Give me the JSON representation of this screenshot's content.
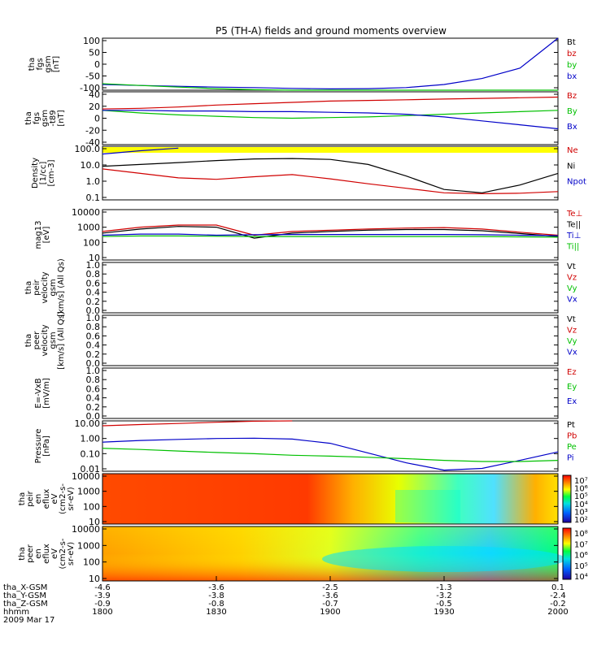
{
  "title": "P5 (TH-A) fields and ground moments overview",
  "colors": {
    "black": "#000000",
    "red": "#d00000",
    "green": "#00c000",
    "blue": "#0000c8",
    "yellow": "#ffff00"
  },
  "panels": [
    {
      "id": "fgs-gsm",
      "ylabel": [
        "tha",
        "fgs",
        "gsm",
        "[nT]"
      ],
      "yticks": [
        "100",
        "50",
        "0",
        "-50",
        "-100"
      ],
      "ylim": [
        -100,
        100
      ],
      "legend": [
        {
          "text": "Bt",
          "color": "black"
        },
        {
          "text": "bz",
          "color": "red"
        },
        {
          "text": "by",
          "color": "green"
        },
        {
          "text": "bx",
          "color": "blue"
        }
      ]
    },
    {
      "id": "fgs-dsl",
      "ylabel": [
        "tha",
        "fgs",
        "gsm",
        "-t89",
        "[nT]"
      ],
      "yticks": [
        "40",
        "20",
        "0",
        "-20",
        "-40"
      ],
      "ylim": [
        -40,
        40
      ],
      "legend": [
        {
          "text": "Bz",
          "color": "red"
        },
        {
          "text": "By",
          "color": "green"
        },
        {
          "text": "Bx",
          "color": "blue"
        }
      ]
    },
    {
      "id": "density",
      "ylabel": [
        "Density",
        "[1/cc]",
        "[cm-3]"
      ],
      "yticks": [
        "100.0",
        "10.0",
        "1.0",
        "0.1"
      ],
      "ylim": [
        0.05,
        200
      ],
      "log": true,
      "legend": [
        {
          "text": "Ne",
          "color": "red"
        },
        {
          "text": "Ni",
          "color": "black"
        },
        {
          "text": "Npot",
          "color": "blue"
        }
      ]
    },
    {
      "id": "temperature",
      "ylabel": [
        "mag13",
        "[eV]"
      ],
      "yticks": [
        "10000",
        "1000",
        "100",
        "10"
      ],
      "ylim": [
        10,
        10000
      ],
      "log": true,
      "legend": [
        {
          "text": "Te⊥",
          "color": "red"
        },
        {
          "text": "Te||",
          "color": "black"
        },
        {
          "text": "Ti⊥",
          "color": "blue"
        },
        {
          "text": "Ti||",
          "color": "green"
        }
      ]
    },
    {
      "id": "peir-velocity",
      "ylabel": [
        "tha",
        "peir",
        "velocity",
        "gsm",
        "[km/s] (All Qs)"
      ],
      "yticks": [
        "1.0",
        "0.8",
        "0.6",
        "0.4",
        "0.2",
        "0.0"
      ],
      "ylim": [
        0,
        1
      ],
      "legend": [
        {
          "text": "Vt",
          "color": "black"
        },
        {
          "text": "Vz",
          "color": "red"
        },
        {
          "text": "Vy",
          "color": "green"
        },
        {
          "text": "Vx",
          "color": "blue"
        }
      ]
    },
    {
      "id": "peer-velocity",
      "ylabel": [
        "tha",
        "peer",
        "velocity",
        "gsm",
        "[km/s] (All Qs)"
      ],
      "yticks": [
        "1.0",
        "0.8",
        "0.6",
        "0.4",
        "0.2",
        "0.0"
      ],
      "ylim": [
        0,
        1
      ],
      "legend": [
        {
          "text": "Vt",
          "color": "black"
        },
        {
          "text": "Vz",
          "color": "red"
        },
        {
          "text": "Vy",
          "color": "green"
        },
        {
          "text": "Vx",
          "color": "blue"
        }
      ]
    },
    {
      "id": "efield",
      "ylabel": [
        "E=-VxB",
        "[mV/m]"
      ],
      "yticks": [
        "1.0",
        "0.8",
        "0.6",
        "0.4",
        "0.2",
        "0.0"
      ],
      "ylim": [
        0,
        1
      ],
      "legend": [
        {
          "text": "Ez",
          "color": "red"
        },
        {
          "text": "Ey",
          "color": "green"
        },
        {
          "text": "Ex",
          "color": "blue"
        }
      ]
    },
    {
      "id": "pressure",
      "ylabel": [
        "Pressure",
        "[nPa]"
      ],
      "yticks": [
        "10.00",
        "1.00",
        "0.10",
        "0.01"
      ],
      "ylim": [
        0.005,
        20
      ],
      "log": true,
      "legend": [
        {
          "text": "Pt",
          "color": "black"
        },
        {
          "text": "Pb",
          "color": "red"
        },
        {
          "text": "Pe",
          "color": "green"
        },
        {
          "text": "Pi",
          "color": "blue"
        }
      ]
    },
    {
      "id": "peir-spectrogram",
      "ylabel": [
        "tha",
        "peir",
        "en",
        "eflux",
        "eV",
        "(cm2-s-",
        "sr-eV)"
      ],
      "yticks": [
        "10000",
        "1000",
        "100",
        "10"
      ],
      "colorbar": [
        "10⁷",
        "10⁶",
        "10⁵",
        "10⁴",
        "10³",
        "10²"
      ]
    },
    {
      "id": "peer-spectrogram",
      "ylabel": [
        "tha",
        "peer",
        "en",
        "eflux",
        "eV",
        "(cm2-s-",
        "sr-eV)"
      ],
      "yticks": [
        "10000",
        "1000",
        "100",
        "10"
      ],
      "colorbar": [
        "10⁸",
        "10⁷",
        "10⁶",
        "10⁵",
        "10⁴"
      ]
    }
  ],
  "xaxis": {
    "rows": [
      {
        "label": "tha_X-GSM",
        "values": [
          "-4.6",
          "-3.6",
          "-2.5",
          "-1.3",
          "0.1"
        ]
      },
      {
        "label": "tha_Y-GSM",
        "values": [
          "-3.9",
          "-3.8",
          "-3.6",
          "-3.2",
          "-2.4"
        ]
      },
      {
        "label": "tha_Z-GSM",
        "values": [
          "-0.9",
          "-0.8",
          "-0.7",
          "-0.5",
          "-0.2"
        ]
      },
      {
        "label": "hhmm",
        "values": [
          "1800",
          "1830",
          "1900",
          "1930",
          "2000"
        ]
      }
    ],
    "date": "2009 Mar 17"
  },
  "chart_data": [
    {
      "type": "line",
      "panel": "fgs-gsm",
      "x_hhmm": [
        1800,
        1810,
        1820,
        1830,
        1840,
        1850,
        1900,
        1910,
        1920,
        1930,
        1940,
        1950,
        2000
      ],
      "ylim": [
        -100,
        100
      ],
      "series": [
        {
          "name": "bx",
          "color": "#0000c8",
          "values": [
            -78,
            -82,
            -85,
            -88,
            -90,
            -93,
            -95,
            -94,
            -90,
            -78,
            -55,
            -15,
            100
          ]
        },
        {
          "name": "by",
          "color": "#00c000",
          "values": [
            -75,
            -82,
            -88,
            -94,
            -98,
            -100,
            -100,
            -100,
            -100,
            -100,
            -100,
            -100,
            -100
          ]
        }
      ]
    },
    {
      "type": "line",
      "panel": "fgs-dsl",
      "x_hhmm": [
        1800,
        1810,
        1820,
        1830,
        1840,
        1850,
        1900,
        1910,
        1920,
        1930,
        1940,
        1950,
        2000
      ],
      "ylim": [
        -40,
        40
      ],
      "series": [
        {
          "name": "Bz",
          "color": "#d00000",
          "values": [
            14,
            15,
            17,
            20,
            22,
            24,
            26,
            27,
            28,
            29,
            30,
            31,
            32
          ]
        },
        {
          "name": "By",
          "color": "#00c000",
          "values": [
            12,
            8,
            5,
            3,
            1,
            0,
            1,
            2,
            4,
            6,
            8,
            10,
            12
          ]
        },
        {
          "name": "Bx",
          "color": "#0000c8",
          "values": [
            12,
            12,
            11,
            11,
            10,
            10,
            9,
            8,
            6,
            2,
            -4,
            -10,
            -16
          ]
        }
      ]
    },
    {
      "type": "line",
      "panel": "density",
      "x_hhmm": [
        1800,
        1810,
        1820,
        1830,
        1840,
        1850,
        1900,
        1910,
        1920,
        1930,
        1940,
        1950,
        2000
      ],
      "ylim": [
        0.05,
        200
      ],
      "log": true,
      "series": [
        {
          "name": "Ne",
          "color": "#d00000",
          "values": [
            6,
            3,
            1.5,
            1.2,
            1.8,
            2.5,
            1.3,
            0.6,
            0.3,
            0.15,
            0.13,
            0.14,
            0.18
          ]
        },
        {
          "name": "Ni",
          "color": "#000000",
          "values": [
            9,
            12,
            16,
            22,
            28,
            30,
            26,
            12,
            2,
            0.25,
            0.15,
            0.5,
            3
          ]
        },
        {
          "name": "Npot",
          "color": "#0000c8",
          "values": [
            60,
            100,
            150,
            null,
            null,
            null,
            null,
            null,
            null,
            null,
            null,
            null,
            null
          ]
        }
      ]
    },
    {
      "type": "line",
      "panel": "temperature",
      "x_hhmm": [
        1800,
        1810,
        1820,
        1830,
        1840,
        1850,
        1900,
        1910,
        1920,
        1930,
        1940,
        1950,
        2000
      ],
      "ylim": [
        10,
        10000
      ],
      "log": true,
      "series": [
        {
          "name": "Te⊥",
          "color": "#d00000",
          "values": [
            500,
            900,
            1200,
            1200,
            300,
            500,
            600,
            700,
            800,
            850,
            700,
            450,
            300
          ]
        },
        {
          "name": "Te||",
          "color": "#000000",
          "values": [
            400,
            700,
            1000,
            900,
            200,
            400,
            500,
            600,
            650,
            650,
            550,
            380,
            250
          ]
        },
        {
          "name": "Ti⊥",
          "color": "#0000c8",
          "values": [
            300,
            350,
            350,
            300,
            320,
            330,
            330,
            330,
            330,
            330,
            320,
            300,
            280
          ]
        },
        {
          "name": "Ti||",
          "color": "#00c000",
          "values": [
            250,
            270,
            270,
            260,
            250,
            250,
            250,
            250,
            250,
            250,
            250,
            240,
            230
          ]
        }
      ]
    },
    {
      "type": "line",
      "panel": "pressure",
      "x_hhmm": [
        1800,
        1810,
        1820,
        1830,
        1840,
        1850,
        1900,
        1910,
        1920,
        1930,
        1940,
        1950,
        2000
      ],
      "ylim": [
        0.005,
        20
      ],
      "log": true,
      "series": [
        {
          "name": "Pb",
          "color": "#d00000",
          "values": [
            9,
            11,
            13,
            16,
            19,
            22,
            null,
            null,
            null,
            null,
            null,
            null,
            null
          ]
        },
        {
          "name": "Pi",
          "color": "#0000c8",
          "values": [
            0.6,
            0.8,
            0.95,
            1.1,
            1.15,
            1.0,
            0.5,
            0.1,
            0.02,
            0.006,
            0.008,
            0.03,
            0.12
          ]
        },
        {
          "name": "Pe",
          "color": "#00c000",
          "values": [
            0.22,
            0.18,
            0.14,
            0.11,
            0.09,
            0.07,
            0.06,
            0.05,
            0.04,
            0.03,
            0.025,
            0.025,
            0.03
          ]
        }
      ]
    }
  ]
}
